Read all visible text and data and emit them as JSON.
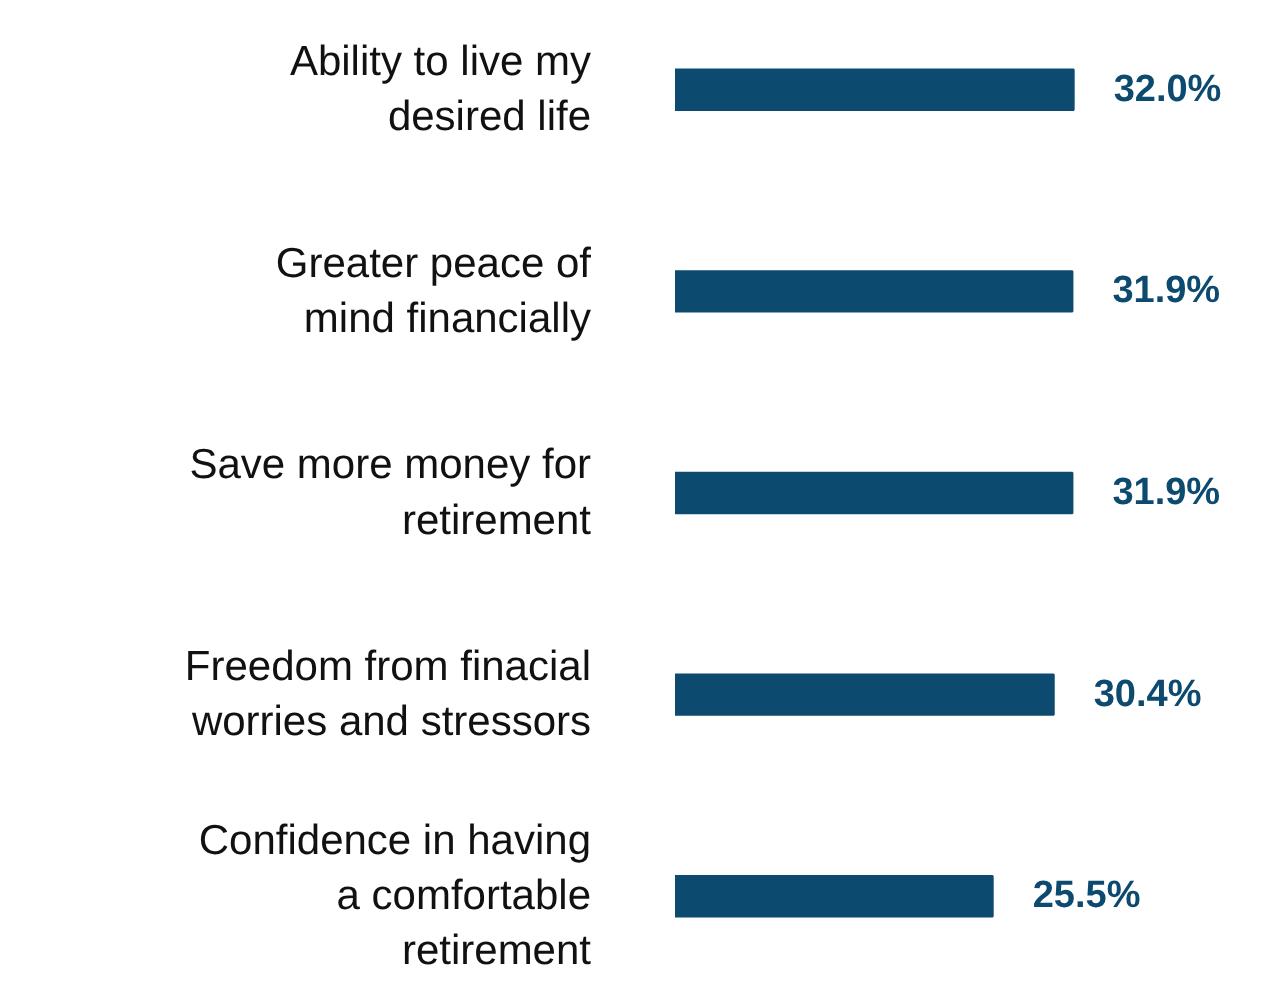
{
  "chart_data": {
    "type": "bar",
    "orientation": "horizontal",
    "categories": [
      "Ability to live my\ndesired life",
      "Greater peace of\nmind financially",
      "Save more money for\nretirement",
      "Freedom from finacial\nworries and stressors",
      "Confidence in having\na comfortable\nretirement"
    ],
    "values": [
      32.0,
      31.9,
      31.9,
      30.4,
      25.5
    ],
    "value_labels": [
      "32.0%",
      "31.9%",
      "31.9%",
      "30.4%",
      "25.5%"
    ],
    "color": "#0d4a70",
    "grid": false,
    "tick_labels": "y"
  }
}
